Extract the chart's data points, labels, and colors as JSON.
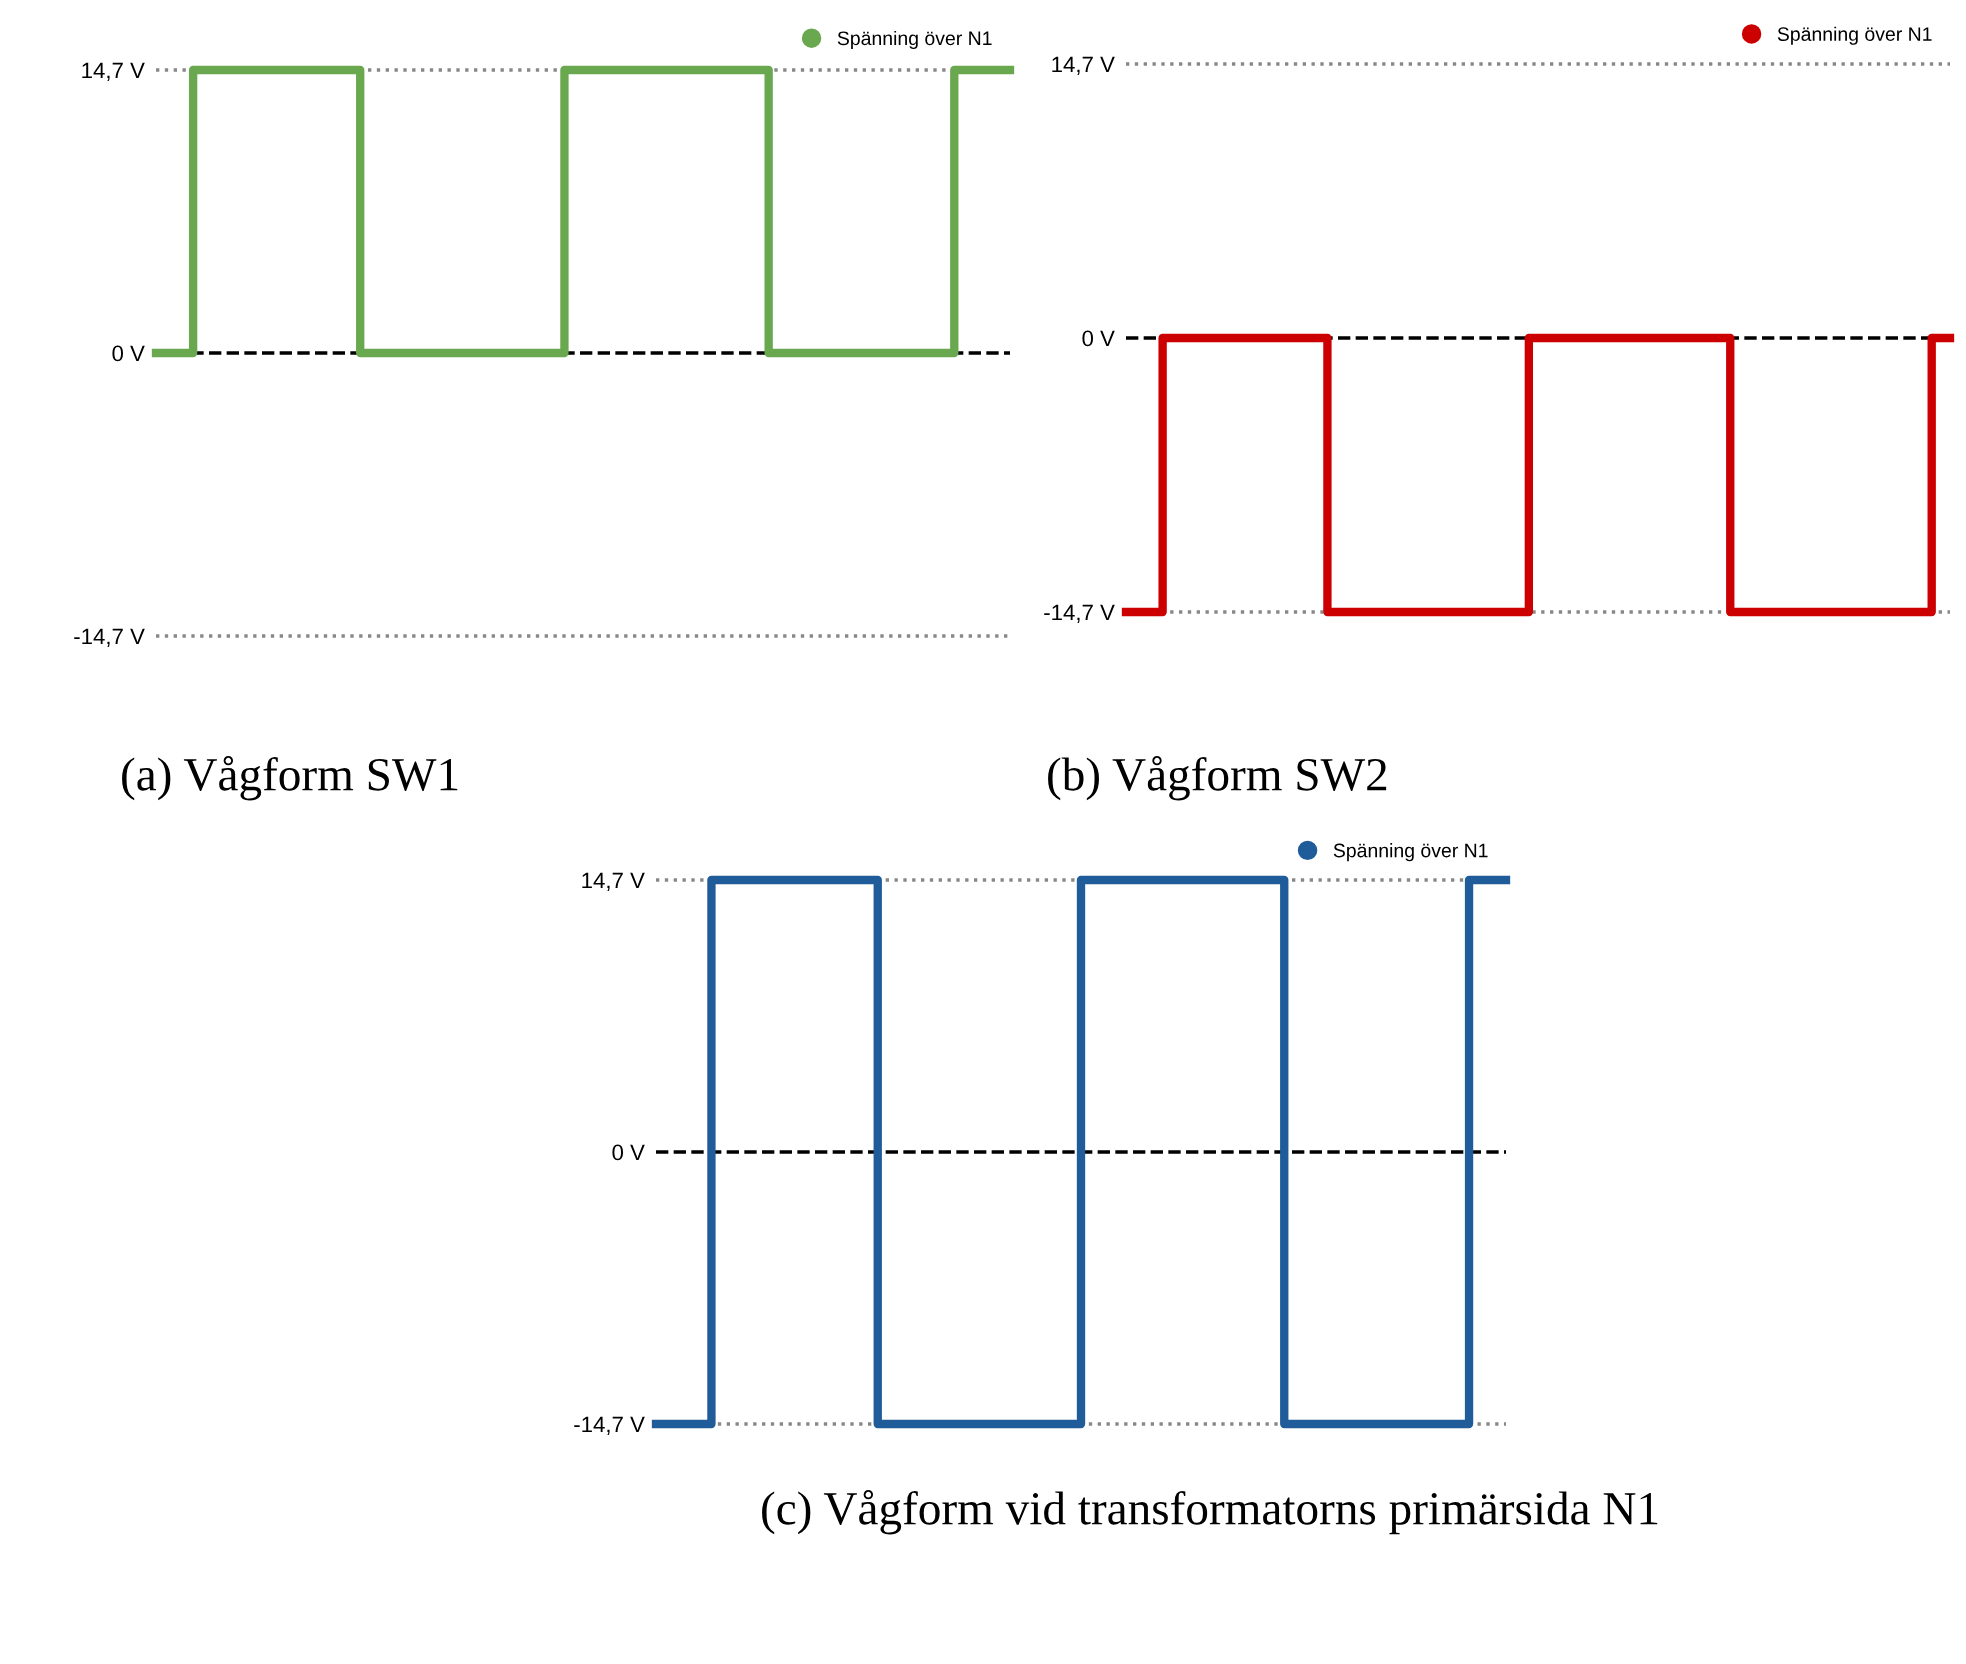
{
  "chart_data": [
    {
      "type": "step",
      "categories": [
        null,
        null,
        null,
        null,
        null,
        null,
        null,
        null,
        null,
        null,
        null,
        null,
        null,
        null,
        null,
        null,
        null,
        null,
        null,
        null,
        null,
        null,
        null,
        null,
        null,
        null,
        null,
        null,
        null,
        null,
        null,
        null,
        null,
        null,
        null,
        null,
        null,
        null,
        null,
        null,
        null,
        null,
        null,
        null,
        null,
        null,
        null
      ],
      "series": [
        {
          "name": "Spänning över N1",
          "color": "#6aa84f",
          "values": [
            0,
            0,
            14.7,
            14.7,
            14.7,
            14.7,
            14.7,
            14.7,
            14.7,
            14.7,
            14.7,
            0,
            0,
            0,
            0,
            0,
            0,
            0,
            0,
            0,
            0,
            0,
            14.7,
            14.7,
            14.7,
            14.7,
            14.7,
            14.7,
            14.7,
            14.7,
            14.7,
            14.7,
            14.7,
            0,
            0,
            0,
            0,
            0,
            0,
            0,
            0,
            0,
            0,
            14.7,
            14.7,
            14.7,
            14.7
          ]
        }
      ],
      "ylim": [
        -14.7,
        14.7
      ],
      "yticks": [
        {
          "value": 14.7,
          "label": "14,7 V"
        },
        {
          "value": 0,
          "label": "0 V"
        },
        {
          "value": -14.7,
          "label": "-14,7 V"
        }
      ],
      "legend": "top right",
      "tick_labels": "y",
      "ref_lines": [
        {
          "axis": "y",
          "value": 0,
          "label": null,
          "color": "#000000",
          "line_style": "dashed"
        },
        {
          "axis": "y",
          "value": 14.7,
          "label": null,
          "color": "#888888",
          "line_style": "dotted"
        },
        {
          "axis": "y",
          "value": -14.7,
          "label": null,
          "color": "#888888",
          "line_style": "dotted"
        }
      ],
      "annotations": [
        "(a) Vågform SW1"
      ]
    },
    {
      "type": "step",
      "categories": [
        null,
        null,
        null,
        null,
        null,
        null,
        null,
        null,
        null,
        null,
        null,
        null,
        null,
        null,
        null,
        null,
        null,
        null,
        null,
        null,
        null,
        null,
        null,
        null,
        null,
        null,
        null,
        null,
        null,
        null,
        null,
        null,
        null,
        null,
        null,
        null,
        null,
        null,
        null,
        null,
        null,
        null,
        null,
        null,
        null,
        null
      ],
      "series": [
        {
          "name": "Spänning över N1",
          "color": "#cc0000",
          "values": [
            -14.7,
            -14.7,
            0,
            0,
            0,
            0,
            0,
            0,
            0,
            0,
            0,
            -14.7,
            -14.7,
            -14.7,
            -14.7,
            -14.7,
            -14.7,
            -14.7,
            -14.7,
            -14.7,
            -14.7,
            -14.7,
            0,
            0,
            0,
            0,
            0,
            0,
            0,
            0,
            0,
            0,
            0,
            -14.7,
            -14.7,
            -14.7,
            -14.7,
            -14.7,
            -14.7,
            -14.7,
            -14.7,
            -14.7,
            -14.7,
            -14.7,
            0,
            0
          ]
        }
      ],
      "ylim": [
        -14.7,
        14.7
      ],
      "yticks": [
        {
          "value": 14.7,
          "label": "14,7 V"
        },
        {
          "value": 0,
          "label": "0 V"
        },
        {
          "value": -14.7,
          "label": "-14,7 V"
        }
      ],
      "legend": "top right",
      "tick_labels": "y",
      "ref_lines": [
        {
          "axis": "y",
          "value": 0,
          "label": null,
          "color": "#000000",
          "line_style": "dashed"
        },
        {
          "axis": "y",
          "value": 14.7,
          "label": null,
          "color": "#888888",
          "line_style": "dotted"
        },
        {
          "axis": "y",
          "value": -14.7,
          "label": null,
          "color": "#888888",
          "line_style": "dotted"
        }
      ],
      "annotations": [
        "(b) Vågform SW2"
      ]
    },
    {
      "type": "step",
      "categories": [
        null,
        null,
        null,
        null,
        null,
        null,
        null,
        null,
        null,
        null,
        null,
        null,
        null,
        null,
        null,
        null,
        null,
        null,
        null,
        null,
        null,
        null,
        null,
        null,
        null,
        null,
        null,
        null,
        null,
        null,
        null,
        null,
        null,
        null,
        null,
        null,
        null,
        null,
        null,
        null,
        null,
        null,
        null,
        null,
        null,
        null,
        null
      ],
      "series": [
        {
          "name": "Spänning över N1",
          "color": "#1f5c99",
          "values": [
            -14.7,
            -14.7,
            -14.7,
            14.7,
            14.7,
            14.7,
            14.7,
            14.7,
            14.7,
            14.7,
            14.7,
            14.7,
            -14.7,
            -14.7,
            -14.7,
            -14.7,
            -14.7,
            -14.7,
            -14.7,
            -14.7,
            -14.7,
            -14.7,
            -14.7,
            14.7,
            14.7,
            14.7,
            14.7,
            14.7,
            14.7,
            14.7,
            14.7,
            14.7,
            14.7,
            14.7,
            -14.7,
            -14.7,
            -14.7,
            -14.7,
            -14.7,
            -14.7,
            -14.7,
            -14.7,
            -14.7,
            -14.7,
            14.7,
            14.7,
            14.7
          ]
        }
      ],
      "ylim": [
        -14.7,
        14.7
      ],
      "yticks": [
        {
          "value": 14.7,
          "label": "14,7 V"
        },
        {
          "value": 0,
          "label": "0 V"
        },
        {
          "value": -14.7,
          "label": "-14,7 V"
        }
      ],
      "legend": "top right",
      "tick_labels": "y",
      "ref_lines": [
        {
          "axis": "y",
          "value": 0,
          "label": null,
          "color": "#000000",
          "line_style": "dashed"
        },
        {
          "axis": "y",
          "value": 14.7,
          "label": null,
          "color": "#888888",
          "line_style": "dotted"
        },
        {
          "axis": "y",
          "value": -14.7,
          "label": null,
          "color": "#888888",
          "line_style": "dotted"
        }
      ],
      "annotations": [
        "(c) Vågform vid transformatorns primärsida N1"
      ]
    }
  ]
}
